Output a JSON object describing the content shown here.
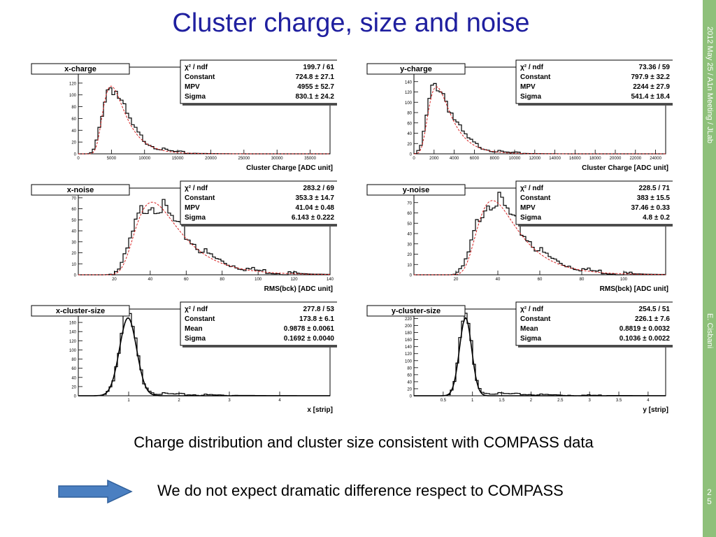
{
  "slide": {
    "title": "Cluster charge, size and noise",
    "sidebar_date": "2012 May 25 / A1n Meeting / JLab",
    "sidebar_author": "E. Cisbani",
    "page_number": "2\n5",
    "conclusion_1": "Charge distribution and cluster size consistent with COMPASS data",
    "conclusion_2": "We do not expect dramatic difference respect to COMPASS",
    "arrow_icon": "right-arrow-icon",
    "colors": {
      "title": "#1f1f9f",
      "sidebar": "#8ec07a",
      "fit_dashed": "#d62020",
      "histogram": "#000000",
      "arrow": "#4a7fc1"
    }
  },
  "chart_data": [
    {
      "type": "histogram",
      "name": "x-charge",
      "xlabel": "Cluster Charge [ADC unit]",
      "xlim": [
        0,
        38000
      ],
      "ylim": [
        0,
        140
      ],
      "xticks": [
        0,
        5000,
        10000,
        15000,
        20000,
        25000,
        30000,
        35000
      ],
      "yticks": [
        0,
        20,
        40,
        60,
        80,
        100,
        120
      ],
      "fit": {
        "shape": "landau",
        "style": "dashed",
        "color": "#d62020",
        "mpv": 4955,
        "sigma": 830.1,
        "amp": 115
      },
      "hist_shape": {
        "mpv": 4955,
        "sigma": 830.1,
        "amp": 115
      },
      "stats": [
        [
          "χ² / ndf",
          "199.7 / 61"
        ],
        [
          "Constant",
          "724.8 ± 27.1"
        ],
        [
          "MPV",
          "4955 ± 52.7"
        ],
        [
          "Sigma",
          "830.1 ± 24.2"
        ]
      ]
    },
    {
      "type": "histogram",
      "name": "y-charge",
      "xlabel": "Cluster Charge [ADC unit]",
      "xlim": [
        0,
        25000
      ],
      "ylim": [
        0,
        160
      ],
      "xticks": [
        0,
        2000,
        4000,
        6000,
        8000,
        10000,
        12000,
        14000,
        16000,
        18000,
        20000,
        22000,
        24000
      ],
      "yticks": [
        0,
        20,
        40,
        60,
        80,
        100,
        120,
        140
      ],
      "fit": {
        "shape": "landau",
        "style": "dashed",
        "color": "#d62020",
        "mpv": 2244,
        "sigma": 541.4,
        "amp": 130
      },
      "hist_shape": {
        "mpv": 2244,
        "sigma": 541.4,
        "amp": 135
      },
      "stats": [
        [
          "χ² / ndf",
          "73.36 / 59"
        ],
        [
          "Constant",
          "797.9 ± 32.2"
        ],
        [
          "MPV",
          "2244 ± 27.9"
        ],
        [
          "Sigma",
          "541.4 ± 18.4"
        ]
      ]
    },
    {
      "type": "histogram",
      "name": "x-noise",
      "xlabel": "RMS(bck) [ADC unit]",
      "xlim": [
        0,
        140
      ],
      "ylim": [
        0,
        75
      ],
      "xticks": [
        20,
        40,
        60,
        80,
        100,
        120,
        140
      ],
      "yticks": [
        0,
        10,
        20,
        30,
        40,
        50,
        60,
        70
      ],
      "fit": {
        "shape": "landau",
        "style": "dashed",
        "color": "#d62020",
        "mpv": 41.04,
        "sigma": 6.143,
        "amp": 66
      },
      "hist_shape": {
        "mpv": 41.04,
        "sigma": 6.143,
        "amp": 66
      },
      "stats": [
        [
          "χ² / ndf",
          "283.2 / 69"
        ],
        [
          "Constant",
          "353.3 ± 14.7"
        ],
        [
          "MPV",
          "41.04 ± 0.48"
        ],
        [
          "Sigma",
          "6.143 ± 0.222"
        ]
      ]
    },
    {
      "type": "histogram",
      "name": "y-noise",
      "xlabel": "RMS(bck) [ADC unit]",
      "xlim": [
        0,
        120
      ],
      "ylim": [
        0,
        80
      ],
      "xticks": [
        20,
        40,
        60,
        80,
        100
      ],
      "yticks": [
        0,
        10,
        20,
        30,
        40,
        50,
        60,
        70
      ],
      "fit": {
        "shape": "landau",
        "style": "dashed",
        "color": "#d62020",
        "mpv": 37.46,
        "sigma": 4.8,
        "amp": 72
      },
      "hist_shape": {
        "mpv": 37.46,
        "sigma": 4.8,
        "amp": 74
      },
      "stats": [
        [
          "χ² / ndf",
          "228.5 / 71"
        ],
        [
          "Constant",
          "383 ± 15.5"
        ],
        [
          "MPV",
          "37.46 ± 0.33"
        ],
        [
          "Sigma",
          "4.8 ± 0.2"
        ]
      ]
    },
    {
      "type": "histogram",
      "name": "x-cluster-size",
      "xlabel": "x [strip]",
      "xlim": [
        0,
        5
      ],
      "ylim": [
        0,
        180
      ],
      "xticks": [
        1,
        2,
        3,
        4
      ],
      "yticks": [
        0,
        20,
        40,
        60,
        80,
        100,
        120,
        140,
        160
      ],
      "fit": {
        "shape": "gaus",
        "style": "solid",
        "color": "#000000",
        "mean": 0.9878,
        "sigma": 0.1692,
        "amp": 170
      },
      "hist_shape": {
        "mean": 0.9878,
        "sigma": 0.1692,
        "amp": 170
      },
      "stats": [
        [
          "χ² / ndf",
          "277.8 / 53"
        ],
        [
          "Constant",
          "173.8 ± 6.1"
        ],
        [
          "Mean",
          "0.9878 ± 0.0061"
        ],
        [
          "Sigma",
          "0.1692 ± 0.0040"
        ]
      ]
    },
    {
      "type": "histogram",
      "name": "y-cluster-size",
      "xlabel": "y [strip]",
      "xlim": [
        0,
        4.3
      ],
      "ylim": [
        0,
        235
      ],
      "xticks": [
        0.5,
        1,
        1.5,
        2,
        2.5,
        3,
        3.5,
        4
      ],
      "yticks": [
        0,
        20,
        40,
        60,
        80,
        100,
        120,
        140,
        160,
        180,
        200,
        220
      ],
      "fit": {
        "shape": "gaus",
        "style": "solid",
        "color": "#000000",
        "mean": 0.8819,
        "sigma": 0.1036,
        "amp": 222
      },
      "hist_shape": {
        "mean": 0.8819,
        "sigma": 0.1036,
        "amp": 222
      },
      "stats": [
        [
          "χ² / ndf",
          "254.5 / 51"
        ],
        [
          "Constant",
          "226.1 ± 7.6"
        ],
        [
          "Mean",
          "0.8819 ± 0.0032"
        ],
        [
          "Sigma",
          "0.1036 ± 0.0022"
        ]
      ]
    }
  ]
}
